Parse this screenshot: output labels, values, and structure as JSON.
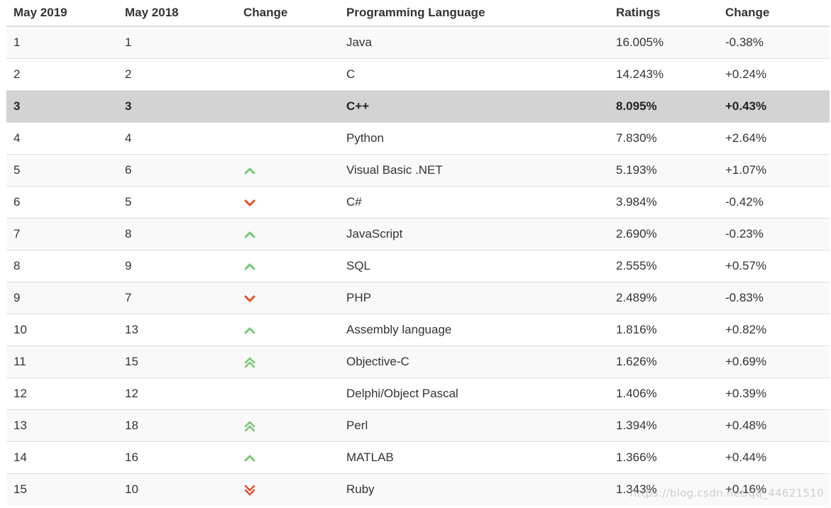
{
  "headers": [
    "May 2019",
    "May 2018",
    "Change",
    "Programming Language",
    "Ratings",
    "Change"
  ],
  "rows": [
    {
      "rank2019": "1",
      "rank2018": "1",
      "trend": "none",
      "language": "Java",
      "rating": "16.005%",
      "change": "-0.38%"
    },
    {
      "rank2019": "2",
      "rank2018": "2",
      "trend": "none",
      "language": "C",
      "rating": "14.243%",
      "change": "+0.24%"
    },
    {
      "rank2019": "3",
      "rank2018": "3",
      "trend": "none",
      "language": "C++",
      "rating": "8.095%",
      "change": "+0.43%",
      "highlight": true
    },
    {
      "rank2019": "4",
      "rank2018": "4",
      "trend": "none",
      "language": "Python",
      "rating": "7.830%",
      "change": "+2.64%"
    },
    {
      "rank2019": "5",
      "rank2018": "6",
      "trend": "up",
      "language": "Visual Basic .NET",
      "rating": "5.193%",
      "change": "+1.07%"
    },
    {
      "rank2019": "6",
      "rank2018": "5",
      "trend": "down",
      "language": "C#",
      "rating": "3.984%",
      "change": "-0.42%"
    },
    {
      "rank2019": "7",
      "rank2018": "8",
      "trend": "up",
      "language": "JavaScript",
      "rating": "2.690%",
      "change": "-0.23%"
    },
    {
      "rank2019": "8",
      "rank2018": "9",
      "trend": "up",
      "language": "SQL",
      "rating": "2.555%",
      "change": "+0.57%"
    },
    {
      "rank2019": "9",
      "rank2018": "7",
      "trend": "down",
      "language": "PHP",
      "rating": "2.489%",
      "change": "-0.83%"
    },
    {
      "rank2019": "10",
      "rank2018": "13",
      "trend": "up",
      "language": "Assembly language",
      "rating": "1.816%",
      "change": "+0.82%"
    },
    {
      "rank2019": "11",
      "rank2018": "15",
      "trend": "double-up",
      "language": "Objective-C",
      "rating": "1.626%",
      "change": "+0.69%"
    },
    {
      "rank2019": "12",
      "rank2018": "12",
      "trend": "none",
      "language": "Delphi/Object Pascal",
      "rating": "1.406%",
      "change": "+0.39%"
    },
    {
      "rank2019": "13",
      "rank2018": "18",
      "trend": "double-up",
      "language": "Perl",
      "rating": "1.394%",
      "change": "+0.48%"
    },
    {
      "rank2019": "14",
      "rank2018": "16",
      "trend": "up",
      "language": "MATLAB",
      "rating": "1.366%",
      "change": "+0.44%"
    },
    {
      "rank2019": "15",
      "rank2018": "10",
      "trend": "double-down",
      "language": "Ruby",
      "rating": "1.343%",
      "change": "+0.16%"
    }
  ],
  "icons": {
    "up": "chevron-up-icon",
    "down": "chevron-down-icon",
    "double-up": "double-chevron-up-icon",
    "double-down": "double-chevron-down-icon"
  },
  "colors": {
    "up": "#7cc576",
    "down": "#e4502a",
    "highlight_row": "#d3d3d3",
    "stripe_row": "#f9f9f9",
    "border": "#dddddd",
    "text": "#333333"
  },
  "watermark": "https://blog.csdn.net/qq_44621510"
}
